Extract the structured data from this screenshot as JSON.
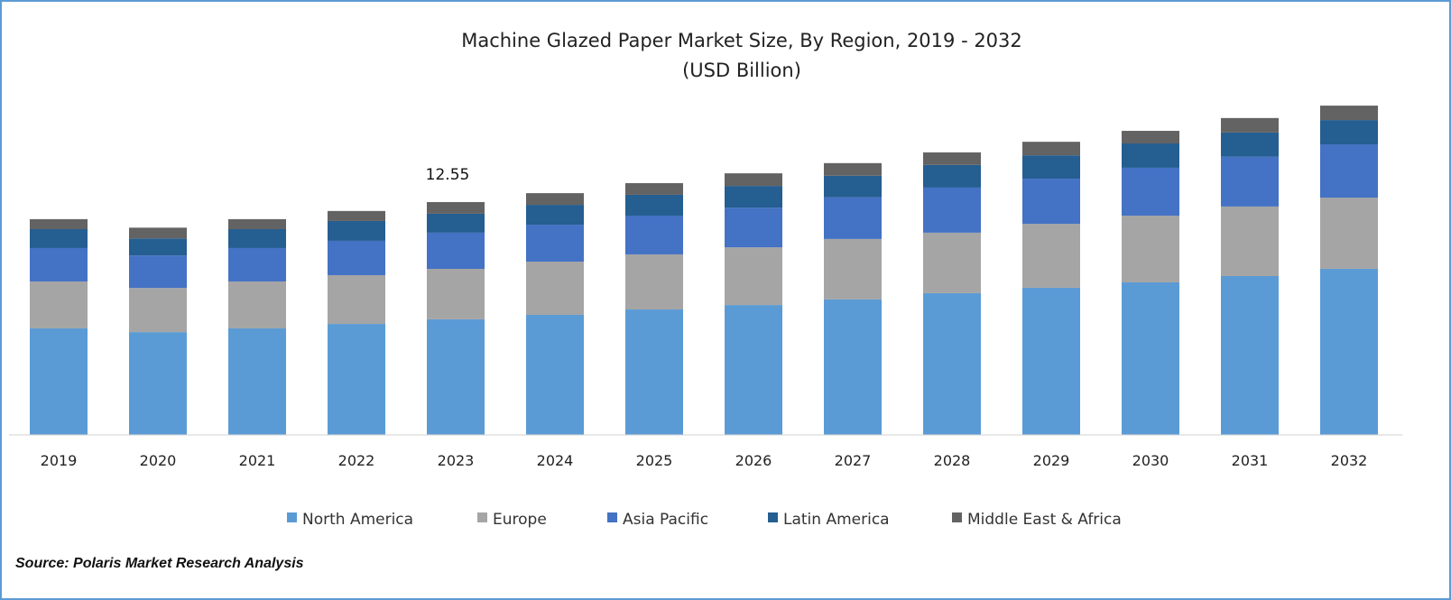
{
  "chart_data": {
    "type": "bar",
    "stacked": true,
    "title": "Machine Glazed Paper Market Size, By Region, 2019 - 2032",
    "subtitle": "(USD Billion)",
    "xlabel": "",
    "ylabel": "",
    "ylim": [
      0,
      18
    ],
    "grid": false,
    "legend_position": "bottom",
    "categories": [
      "2019",
      "2020",
      "2021",
      "2022",
      "2023",
      "2024",
      "2025",
      "2026",
      "2027",
      "2028",
      "2029",
      "2030",
      "2031",
      "2032"
    ],
    "series": [
      {
        "name": "North America",
        "color": "#5B9BD5",
        "values": [
          5.74,
          5.54,
          5.74,
          5.98,
          6.23,
          6.47,
          6.76,
          7.0,
          7.3,
          7.64,
          7.93,
          8.22,
          8.56,
          8.95
        ]
      },
      {
        "name": "Europe",
        "color": "#A5A5A5",
        "values": [
          2.53,
          2.38,
          2.53,
          2.63,
          2.72,
          2.87,
          2.97,
          3.11,
          3.26,
          3.26,
          3.45,
          3.6,
          3.75,
          3.84
        ]
      },
      {
        "name": "Asia Pacific",
        "color": "#4472C4",
        "values": [
          1.8,
          1.75,
          1.8,
          1.85,
          1.95,
          1.99,
          2.09,
          2.14,
          2.24,
          2.43,
          2.43,
          2.58,
          2.68,
          2.87
        ]
      },
      {
        "name": "Latin America",
        "color": "#255E91",
        "values": [
          1.02,
          0.92,
          1.02,
          1.07,
          1.02,
          1.07,
          1.12,
          1.17,
          1.17,
          1.22,
          1.26,
          1.31,
          1.31,
          1.31
        ]
      },
      {
        "name": "Middle East & Africa",
        "color": "#636363",
        "values": [
          0.54,
          0.58,
          0.54,
          0.54,
          0.63,
          0.63,
          0.63,
          0.68,
          0.68,
          0.68,
          0.73,
          0.68,
          0.78,
          0.78
        ]
      }
    ],
    "annotations": [
      {
        "category": "2023",
        "text": "12.55"
      }
    ]
  },
  "source": "Source: Polaris Market Research Analysis"
}
